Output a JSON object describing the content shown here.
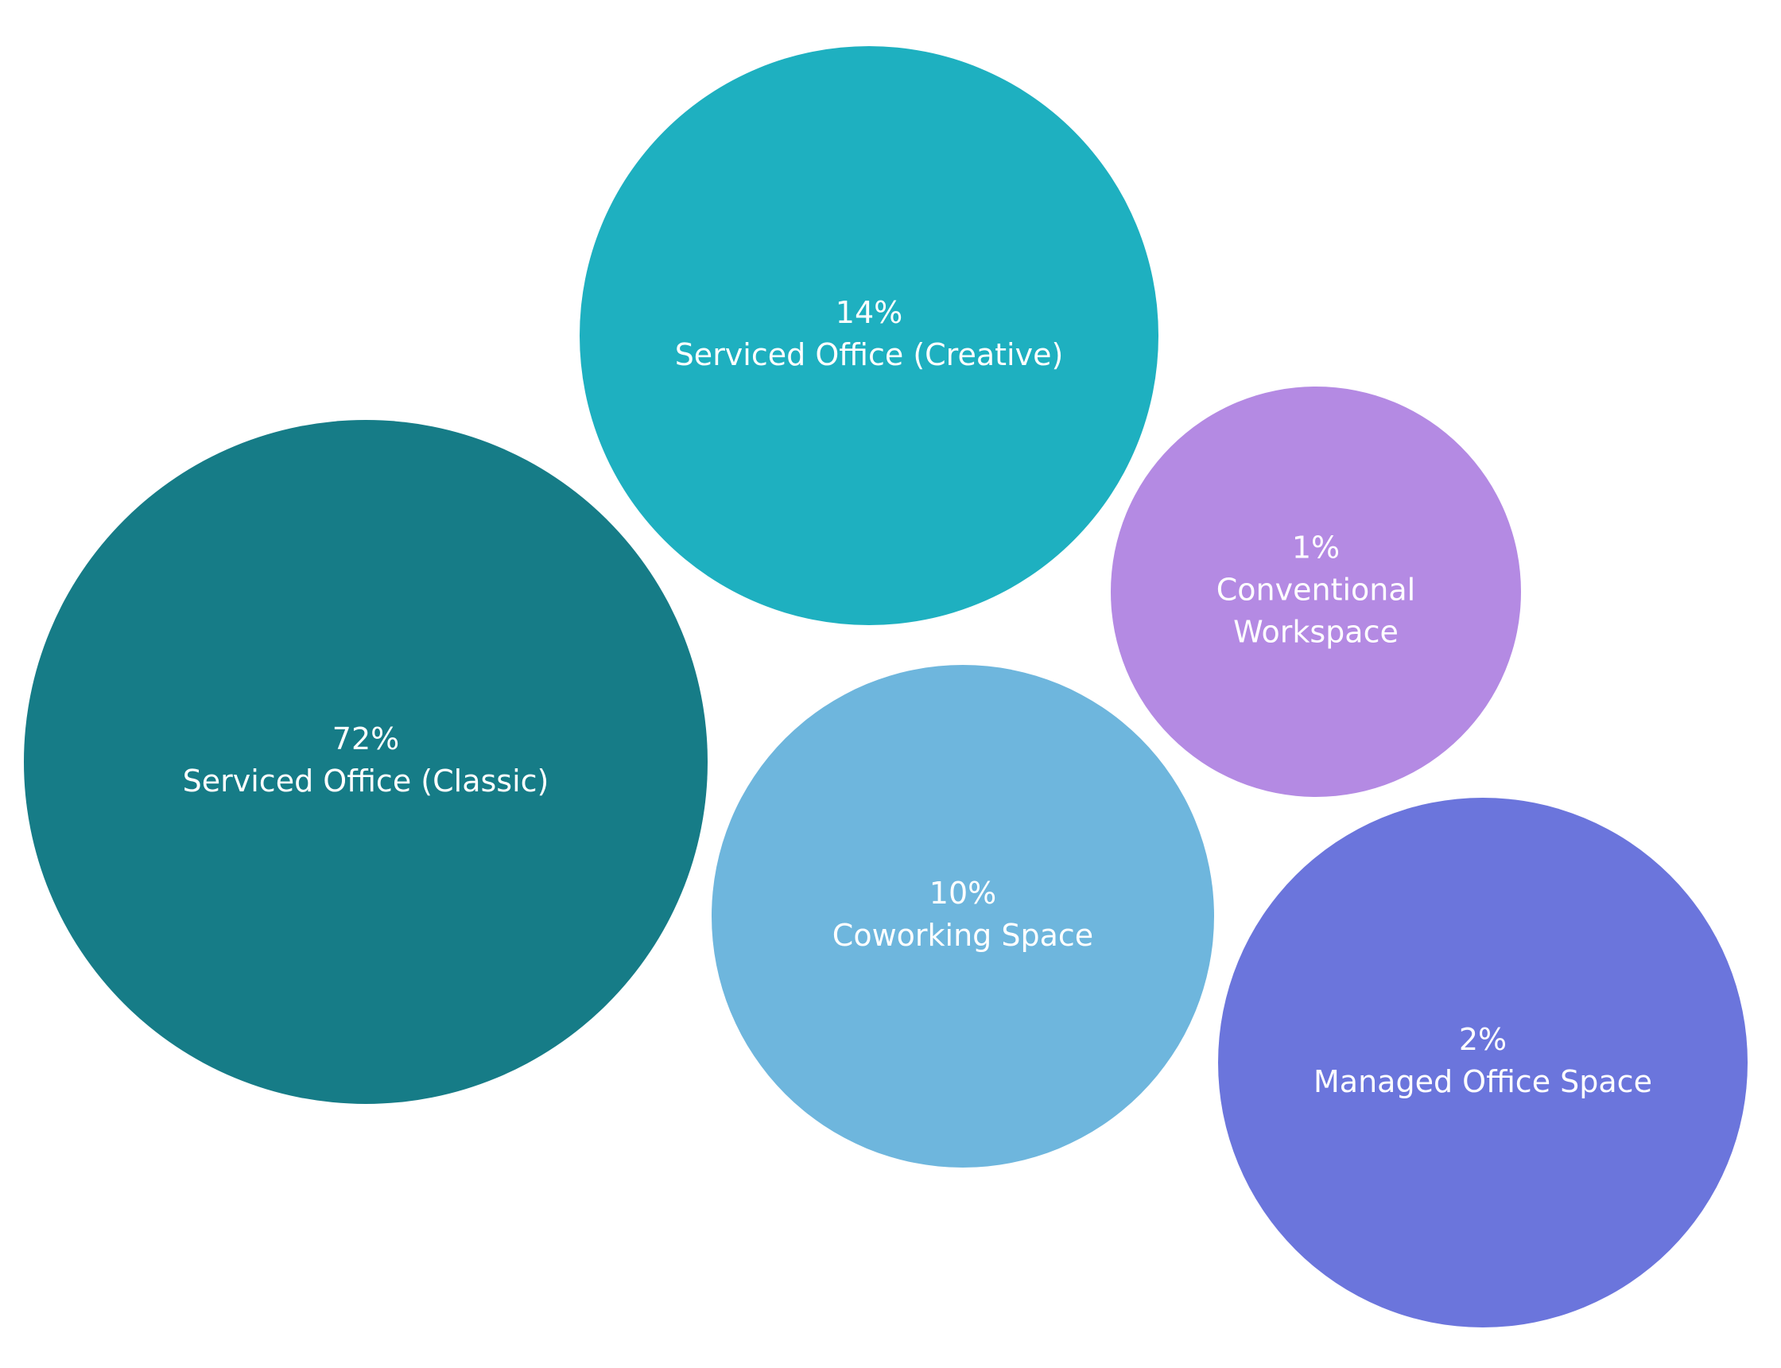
{
  "chart_data": {
    "type": "bubble",
    "unit": "%",
    "series": [
      {
        "name": "Serviced Office (Classic)",
        "value": 72,
        "value_label": "72%",
        "name_lines": [
          "Serviced Office (Classic)"
        ],
        "color": "#167c87"
      },
      {
        "name": "Serviced Office (Creative)",
        "value": 14,
        "value_label": "14%",
        "name_lines": [
          "Serviced Office (Creative)"
        ],
        "color": "#1eb0c0"
      },
      {
        "name": "Conventional Workspace",
        "value": 1,
        "value_label": "1%",
        "name_lines": [
          "Conventional",
          "Workspace"
        ],
        "color": "#b48ae3"
      },
      {
        "name": "Coworking Space",
        "value": 10,
        "value_label": "10%",
        "name_lines": [
          "Coworking Space"
        ],
        "color": "#6eb6dd"
      },
      {
        "name": "Managed Office Space",
        "value": 2,
        "value_label": "2%",
        "name_lines": [
          "Managed Office Space"
        ],
        "color": "#6b75dc"
      }
    ]
  }
}
